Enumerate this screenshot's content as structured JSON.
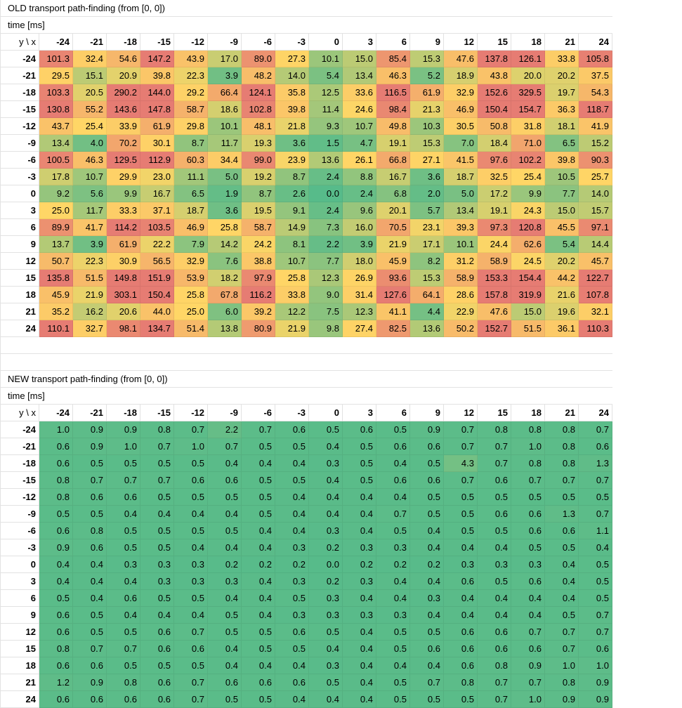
{
  "axes": [
    "-24",
    "-21",
    "-18",
    "-15",
    "-12",
    "-9",
    "-6",
    "-3",
    "0",
    "3",
    "6",
    "9",
    "12",
    "15",
    "18",
    "21",
    "24"
  ],
  "colors": {
    "low": "#57bb8a",
    "mid": "#ffd666",
    "high": "#e67c73"
  },
  "tables": [
    {
      "title": "OLD transport path-finding (from [0, 0])",
      "unit_label": "time [ms]",
      "corner": "y \\ x",
      "scale": {
        "min": 0.0,
        "mid": 25.0,
        "max": 110.0
      },
      "rows": [
        [
          "101.3",
          "32.4",
          "54.6",
          "147.2",
          "43.9",
          "17.0",
          "89.0",
          "27.3",
          "10.1",
          "15.0",
          "85.4",
          "15.3",
          "47.6",
          "137.8",
          "126.1",
          "33.8",
          "105.8"
        ],
        [
          "29.5",
          "15.1",
          "20.9",
          "39.8",
          "22.3",
          "3.9",
          "48.2",
          "14.0",
          "5.4",
          "13.4",
          "46.3",
          "5.2",
          "18.9",
          "43.8",
          "20.0",
          "20.2",
          "37.5"
        ],
        [
          "103.3",
          "20.5",
          "290.2",
          "144.0",
          "29.2",
          "66.4",
          "124.1",
          "35.8",
          "12.5",
          "33.6",
          "116.5",
          "61.9",
          "32.9",
          "152.6",
          "329.5",
          "19.7",
          "54.3"
        ],
        [
          "130.8",
          "55.2",
          "143.6",
          "147.8",
          "58.7",
          "18.6",
          "102.8",
          "39.8",
          "11.4",
          "24.6",
          "98.4",
          "21.3",
          "46.9",
          "150.4",
          "154.7",
          "36.3",
          "118.7"
        ],
        [
          "43.7",
          "25.4",
          "33.9",
          "61.9",
          "29.8",
          "10.1",
          "48.1",
          "21.8",
          "9.3",
          "10.7",
          "49.8",
          "10.3",
          "30.5",
          "50.8",
          "31.8",
          "18.1",
          "41.9"
        ],
        [
          "13.4",
          "4.0",
          "70.2",
          "30.1",
          "8.7",
          "11.7",
          "19.3",
          "3.6",
          "1.5",
          "4.7",
          "19.1",
          "15.3",
          "7.0",
          "18.4",
          "71.0",
          "6.5",
          "15.2"
        ],
        [
          "100.5",
          "46.3",
          "129.5",
          "112.9",
          "60.3",
          "34.4",
          "99.0",
          "23.9",
          "13.6",
          "26.1",
          "66.8",
          "27.1",
          "41.5",
          "97.6",
          "102.2",
          "39.8",
          "90.3"
        ],
        [
          "17.8",
          "10.7",
          "29.9",
          "23.0",
          "11.1",
          "5.0",
          "19.2",
          "8.7",
          "2.4",
          "8.8",
          "16.7",
          "3.6",
          "18.7",
          "32.5",
          "25.4",
          "10.5",
          "25.7"
        ],
        [
          "9.2",
          "5.6",
          "9.9",
          "16.7",
          "6.5",
          "1.9",
          "8.7",
          "2.6",
          "0.0",
          "2.4",
          "6.8",
          "2.0",
          "5.0",
          "17.2",
          "9.9",
          "7.7",
          "14.0"
        ],
        [
          "25.0",
          "11.7",
          "33.3",
          "37.1",
          "18.7",
          "3.6",
          "19.5",
          "9.1",
          "2.4",
          "9.6",
          "20.1",
          "5.7",
          "13.4",
          "19.1",
          "24.3",
          "15.0",
          "15.7"
        ],
        [
          "89.9",
          "41.7",
          "114.2",
          "103.5",
          "46.9",
          "25.8",
          "58.7",
          "14.9",
          "7.3",
          "16.0",
          "70.5",
          "23.1",
          "39.3",
          "97.3",
          "120.8",
          "45.5",
          "97.1"
        ],
        [
          "13.7",
          "3.9",
          "61.9",
          "22.2",
          "7.9",
          "14.2",
          "24.2",
          "8.1",
          "2.2",
          "3.9",
          "21.9",
          "17.1",
          "10.1",
          "24.4",
          "62.6",
          "5.4",
          "14.4"
        ],
        [
          "50.7",
          "22.3",
          "30.9",
          "56.5",
          "32.9",
          "7.6",
          "38.8",
          "10.7",
          "7.7",
          "18.0",
          "45.9",
          "8.2",
          "31.2",
          "58.9",
          "24.5",
          "20.2",
          "45.7"
        ],
        [
          "135.8",
          "51.5",
          "149.8",
          "151.9",
          "53.9",
          "18.2",
          "97.9",
          "25.8",
          "12.3",
          "26.9",
          "93.6",
          "15.3",
          "58.9",
          "153.3",
          "154.4",
          "44.2",
          "122.7"
        ],
        [
          "45.9",
          "21.9",
          "303.1",
          "150.4",
          "25.8",
          "67.8",
          "116.2",
          "33.8",
          "9.0",
          "31.4",
          "127.6",
          "64.1",
          "28.6",
          "157.8",
          "319.9",
          "21.6",
          "107.8"
        ],
        [
          "35.2",
          "16.2",
          "20.6",
          "44.0",
          "25.0",
          "6.0",
          "39.2",
          "12.2",
          "7.5",
          "12.3",
          "41.1",
          "4.4",
          "22.9",
          "47.6",
          "15.0",
          "19.6",
          "32.1"
        ],
        [
          "110.1",
          "32.7",
          "98.1",
          "134.7",
          "51.4",
          "13.8",
          "80.9",
          "21.9",
          "9.8",
          "27.4",
          "82.5",
          "13.6",
          "50.2",
          "152.7",
          "51.5",
          "36.1",
          "110.3"
        ]
      ]
    },
    {
      "title": "NEW transport path-finding (from [0, 0])",
      "unit_label": "time [ms]",
      "corner": "y \\ x",
      "scale": {
        "min": 0.0,
        "mid": 25.0,
        "max": 110.0
      },
      "rows": [
        [
          "1.0",
          "0.9",
          "0.9",
          "0.8",
          "0.7",
          "2.2",
          "0.7",
          "0.6",
          "0.5",
          "0.6",
          "0.5",
          "0.9",
          "0.7",
          "0.8",
          "0.8",
          "0.8",
          "0.7"
        ],
        [
          "0.6",
          "0.9",
          "1.0",
          "0.7",
          "1.0",
          "0.7",
          "0.5",
          "0.5",
          "0.4",
          "0.5",
          "0.6",
          "0.6",
          "0.7",
          "0.7",
          "1.0",
          "0.8",
          "0.6"
        ],
        [
          "0.6",
          "0.5",
          "0.5",
          "0.5",
          "0.5",
          "0.4",
          "0.4",
          "0.4",
          "0.3",
          "0.5",
          "0.4",
          "0.5",
          "4.3",
          "0.7",
          "0.8",
          "0.8",
          "1.3"
        ],
        [
          "0.8",
          "0.7",
          "0.7",
          "0.7",
          "0.6",
          "0.6",
          "0.5",
          "0.5",
          "0.4",
          "0.5",
          "0.6",
          "0.6",
          "0.7",
          "0.6",
          "0.7",
          "0.7",
          "0.7"
        ],
        [
          "0.8",
          "0.6",
          "0.6",
          "0.5",
          "0.5",
          "0.5",
          "0.5",
          "0.4",
          "0.4",
          "0.4",
          "0.4",
          "0.5",
          "0.5",
          "0.5",
          "0.5",
          "0.5",
          "0.5"
        ],
        [
          "0.5",
          "0.5",
          "0.4",
          "0.4",
          "0.4",
          "0.4",
          "0.5",
          "0.4",
          "0.4",
          "0.4",
          "0.7",
          "0.5",
          "0.5",
          "0.6",
          "0.6",
          "1.3",
          "0.7"
        ],
        [
          "0.6",
          "0.8",
          "0.5",
          "0.5",
          "0.5",
          "0.5",
          "0.4",
          "0.4",
          "0.3",
          "0.4",
          "0.5",
          "0.4",
          "0.5",
          "0.5",
          "0.6",
          "0.6",
          "1.1"
        ],
        [
          "0.9",
          "0.6",
          "0.5",
          "0.5",
          "0.4",
          "0.4",
          "0.4",
          "0.3",
          "0.2",
          "0.3",
          "0.3",
          "0.4",
          "0.4",
          "0.4",
          "0.5",
          "0.5",
          "0.4"
        ],
        [
          "0.4",
          "0.4",
          "0.3",
          "0.3",
          "0.3",
          "0.2",
          "0.2",
          "0.2",
          "0.0",
          "0.2",
          "0.2",
          "0.2",
          "0.3",
          "0.3",
          "0.3",
          "0.4",
          "0.5"
        ],
        [
          "0.4",
          "0.4",
          "0.4",
          "0.3",
          "0.3",
          "0.3",
          "0.4",
          "0.3",
          "0.2",
          "0.3",
          "0.4",
          "0.4",
          "0.6",
          "0.5",
          "0.6",
          "0.4",
          "0.5"
        ],
        [
          "0.5",
          "0.4",
          "0.6",
          "0.5",
          "0.5",
          "0.4",
          "0.4",
          "0.5",
          "0.3",
          "0.4",
          "0.4",
          "0.3",
          "0.4",
          "0.4",
          "0.4",
          "0.4",
          "0.5"
        ],
        [
          "0.6",
          "0.5",
          "0.4",
          "0.4",
          "0.4",
          "0.5",
          "0.4",
          "0.3",
          "0.3",
          "0.3",
          "0.3",
          "0.4",
          "0.4",
          "0.4",
          "0.4",
          "0.5",
          "0.7"
        ],
        [
          "0.6",
          "0.5",
          "0.5",
          "0.6",
          "0.7",
          "0.5",
          "0.5",
          "0.6",
          "0.5",
          "0.4",
          "0.5",
          "0.5",
          "0.6",
          "0.6",
          "0.7",
          "0.7",
          "0.7"
        ],
        [
          "0.8",
          "0.7",
          "0.7",
          "0.6",
          "0.6",
          "0.4",
          "0.5",
          "0.5",
          "0.4",
          "0.4",
          "0.5",
          "0.6",
          "0.6",
          "0.6",
          "0.6",
          "0.7",
          "0.6"
        ],
        [
          "0.6",
          "0.6",
          "0.5",
          "0.5",
          "0.5",
          "0.4",
          "0.4",
          "0.4",
          "0.3",
          "0.4",
          "0.4",
          "0.4",
          "0.6",
          "0.8",
          "0.9",
          "1.0",
          "1.0"
        ],
        [
          "1.2",
          "0.9",
          "0.8",
          "0.6",
          "0.7",
          "0.6",
          "0.6",
          "0.6",
          "0.5",
          "0.4",
          "0.5",
          "0.7",
          "0.8",
          "0.7",
          "0.7",
          "0.8",
          "0.9"
        ],
        [
          "0.6",
          "0.6",
          "0.6",
          "0.6",
          "0.7",
          "0.5",
          "0.5",
          "0.4",
          "0.4",
          "0.4",
          "0.5",
          "0.5",
          "0.5",
          "0.7",
          "1.0",
          "0.9",
          "0.9"
        ]
      ]
    }
  ]
}
